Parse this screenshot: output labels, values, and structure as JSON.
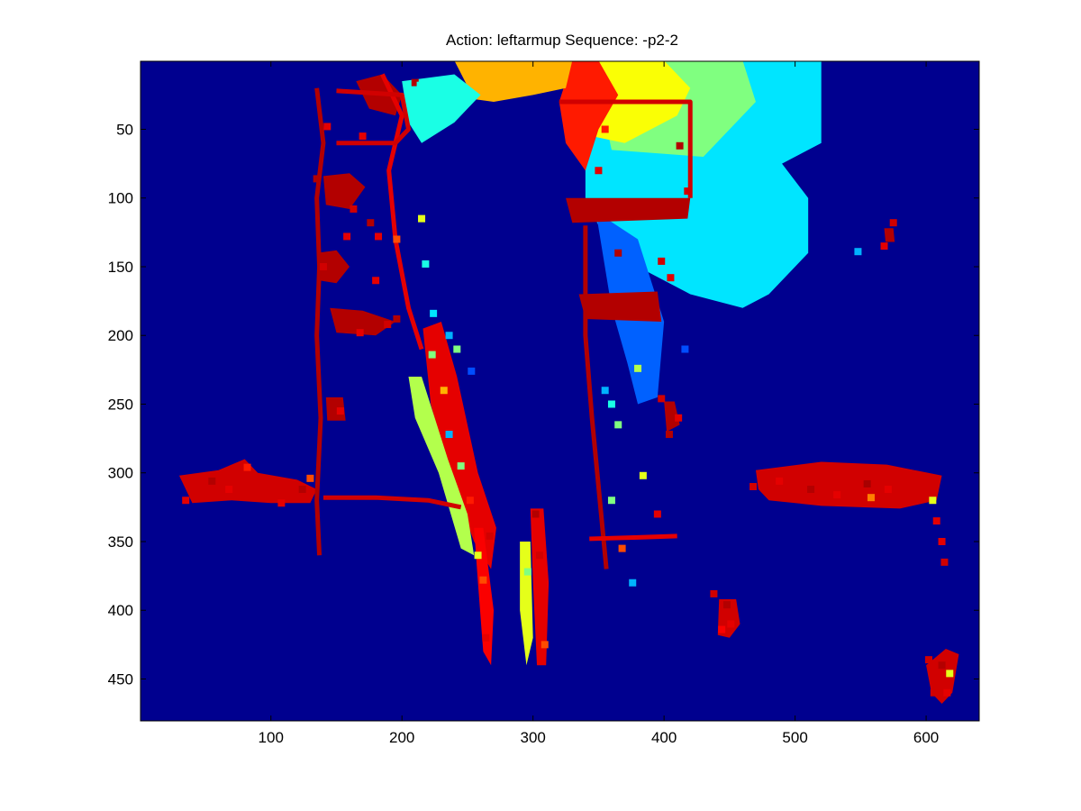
{
  "chart_data": {
    "type": "heatmap",
    "title": "Action: leftarmup Sequence: -p2-2",
    "xlabel": "",
    "ylabel": "",
    "xlim": [
      0.5,
      640.5
    ],
    "ylim": [
      0.5,
      480.5
    ],
    "y_reversed": true,
    "grid": false,
    "colormap": "jet",
    "background_value_color": "#00008f",
    "x_ticks": [
      100,
      200,
      300,
      400,
      500,
      600
    ],
    "y_ticks": [
      50,
      100,
      150,
      200,
      250,
      300,
      350,
      400,
      450
    ],
    "x_tick_labels": [
      "100",
      "200",
      "300",
      "400",
      "500",
      "600"
    ],
    "y_tick_labels": [
      "50",
      "100",
      "150",
      "200",
      "250",
      "300",
      "350",
      "400",
      "450"
    ],
    "regions": [
      {
        "kind": "polygon",
        "level": 0.35,
        "points": [
          [
            340,
            0
          ],
          [
            430,
            0
          ],
          [
            520,
            0
          ],
          [
            520,
            60
          ],
          [
            490,
            75
          ],
          [
            510,
            100
          ],
          [
            510,
            140
          ],
          [
            480,
            170
          ],
          [
            460,
            180
          ],
          [
            420,
            170
          ],
          [
            360,
            140
          ],
          [
            340,
            100
          ]
        ]
      },
      {
        "kind": "polygon",
        "level": 0.5,
        "points": [
          [
            345,
            0
          ],
          [
            410,
            0
          ],
          [
            460,
            0
          ],
          [
            470,
            30
          ],
          [
            440,
            60
          ],
          [
            430,
            70
          ],
          [
            360,
            65
          ]
        ]
      },
      {
        "kind": "polygon",
        "level": 0.62,
        "points": [
          [
            345,
            0
          ],
          [
            400,
            0
          ],
          [
            420,
            20
          ],
          [
            410,
            40
          ],
          [
            370,
            60
          ],
          [
            345,
            55
          ]
        ]
      },
      {
        "kind": "polygon",
        "level": 0.85,
        "points": [
          [
            330,
            0
          ],
          [
            350,
            0
          ],
          [
            365,
            25
          ],
          [
            350,
            50
          ],
          [
            340,
            80
          ],
          [
            325,
            60
          ],
          [
            320,
            30
          ]
        ]
      },
      {
        "kind": "polygon",
        "level": 0.22,
        "points": [
          [
            348,
            110
          ],
          [
            380,
            130
          ],
          [
            400,
            190
          ],
          [
            395,
            245
          ],
          [
            380,
            250
          ],
          [
            372,
            220
          ],
          [
            360,
            180
          ]
        ]
      },
      {
        "kind": "polygon",
        "level": 0.7,
        "points": [
          [
            240,
            0
          ],
          [
            300,
            0
          ],
          [
            330,
            0
          ],
          [
            325,
            20
          ],
          [
            300,
            25
          ],
          [
            270,
            30
          ],
          [
            255,
            28
          ]
        ]
      },
      {
        "kind": "polygon",
        "level": 0.4,
        "points": [
          [
            200,
            15
          ],
          [
            240,
            10
          ],
          [
            260,
            25
          ],
          [
            240,
            45
          ],
          [
            215,
            60
          ],
          [
            205,
            45
          ]
        ]
      },
      {
        "kind": "polygon",
        "level": 0.95,
        "points": [
          [
            165,
            15
          ],
          [
            185,
            10
          ],
          [
            200,
            25
          ],
          [
            195,
            40
          ],
          [
            175,
            35
          ]
        ]
      },
      {
        "kind": "polygon",
        "level": 0.9,
        "points": [
          [
            216,
            195
          ],
          [
            230,
            190
          ],
          [
            242,
            230
          ],
          [
            258,
            300
          ],
          [
            272,
            340
          ],
          [
            268,
            370
          ],
          [
            255,
            350
          ],
          [
            236,
            300
          ],
          [
            222,
            250
          ]
        ]
      },
      {
        "kind": "polygon",
        "level": 0.55,
        "points": [
          [
            205,
            230
          ],
          [
            215,
            230
          ],
          [
            235,
            290
          ],
          [
            250,
            330
          ],
          [
            255,
            360
          ],
          [
            245,
            355
          ],
          [
            228,
            300
          ],
          [
            210,
            260
          ]
        ]
      },
      {
        "kind": "polygon",
        "level": 0.88,
        "points": [
          [
            255,
            340
          ],
          [
            262,
            340
          ],
          [
            270,
            400
          ],
          [
            268,
            440
          ],
          [
            262,
            430
          ],
          [
            258,
            380
          ]
        ]
      },
      {
        "kind": "polygon",
        "level": 0.9,
        "points": [
          [
            298,
            326
          ],
          [
            308,
            326
          ],
          [
            312,
            380
          ],
          [
            310,
            440
          ],
          [
            303,
            440
          ],
          [
            300,
            380
          ]
        ]
      },
      {
        "kind": "polygon",
        "level": 0.6,
        "points": [
          [
            290,
            350
          ],
          [
            298,
            350
          ],
          [
            300,
            420
          ],
          [
            295,
            440
          ],
          [
            290,
            400
          ]
        ]
      },
      {
        "kind": "polygon",
        "level": 0.92,
        "points": [
          [
            470,
            298
          ],
          [
            520,
            292
          ],
          [
            570,
            294
          ],
          [
            612,
            302
          ],
          [
            608,
            320
          ],
          [
            580,
            326
          ],
          [
            520,
            324
          ],
          [
            480,
            320
          ],
          [
            472,
            312
          ]
        ]
      },
      {
        "kind": "polygon",
        "level": 0.92,
        "points": [
          [
            30,
            302
          ],
          [
            60,
            298
          ],
          [
            80,
            290
          ],
          [
            90,
            300
          ],
          [
            120,
            305
          ],
          [
            135,
            312
          ],
          [
            130,
            322
          ],
          [
            100,
            322
          ],
          [
            70,
            320
          ],
          [
            40,
            322
          ]
        ]
      },
      {
        "kind": "polygon",
        "level": 0.92,
        "points": [
          [
            442,
            392
          ],
          [
            455,
            392
          ],
          [
            458,
            410
          ],
          [
            450,
            420
          ],
          [
            441,
            418
          ]
        ]
      },
      {
        "kind": "polygon",
        "level": 0.92,
        "points": [
          [
            600,
            440
          ],
          [
            615,
            428
          ],
          [
            625,
            432
          ],
          [
            620,
            460
          ],
          [
            612,
            468
          ],
          [
            604,
            460
          ]
        ]
      },
      {
        "kind": "polygon",
        "level": 0.95,
        "points": [
          [
            135,
            140
          ],
          [
            150,
            138
          ],
          [
            160,
            150
          ],
          [
            150,
            162
          ],
          [
            137,
            160
          ]
        ]
      },
      {
        "kind": "polygon",
        "level": 0.95,
        "points": [
          [
            140,
            84
          ],
          [
            160,
            82
          ],
          [
            172,
            92
          ],
          [
            160,
            108
          ],
          [
            142,
            105
          ]
        ]
      },
      {
        "kind": "polygon",
        "level": 0.95,
        "points": [
          [
            145,
            180
          ],
          [
            170,
            182
          ],
          [
            195,
            190
          ],
          [
            180,
            200
          ],
          [
            150,
            198
          ]
        ]
      },
      {
        "kind": "polygon",
        "level": 0.95,
        "points": [
          [
            142,
            245
          ],
          [
            155,
            245
          ],
          [
            157,
            262
          ],
          [
            143,
            262
          ]
        ]
      },
      {
        "kind": "polygon",
        "level": 0.95,
        "points": [
          [
            325,
            100
          ],
          [
            420,
            100
          ],
          [
            418,
            115
          ],
          [
            330,
            118
          ]
        ]
      },
      {
        "kind": "polygon",
        "level": 0.95,
        "points": [
          [
            335,
            170
          ],
          [
            395,
            168
          ],
          [
            398,
            190
          ],
          [
            340,
            188
          ]
        ]
      },
      {
        "kind": "polygon",
        "level": 0.95,
        "points": [
          [
            400,
            248
          ],
          [
            408,
            248
          ],
          [
            412,
            265
          ],
          [
            402,
            270
          ]
        ]
      },
      {
        "kind": "polygon",
        "level": 0.95,
        "points": [
          [
            568,
            122
          ],
          [
            575,
            122
          ],
          [
            576,
            132
          ],
          [
            569,
            132
          ]
        ]
      }
    ],
    "edge_traces": [
      {
        "level": 0.95,
        "points": [
          [
            135,
            20
          ],
          [
            140,
            60
          ],
          [
            135,
            100
          ],
          [
            137,
            150
          ],
          [
            135,
            200
          ],
          [
            138,
            260
          ],
          [
            135,
            320
          ],
          [
            137,
            360
          ]
        ]
      },
      {
        "level": 0.9,
        "points": [
          [
            185,
            10
          ],
          [
            200,
            40
          ],
          [
            190,
            80
          ],
          [
            195,
            130
          ],
          [
            205,
            180
          ],
          [
            215,
            210
          ]
        ]
      },
      {
        "level": 0.92,
        "points": [
          [
            150,
            22
          ],
          [
            200,
            25
          ],
          [
            205,
            50
          ],
          [
            195,
            60
          ],
          [
            150,
            60
          ]
        ]
      },
      {
        "level": 0.92,
        "points": [
          [
            320,
            30
          ],
          [
            420,
            30
          ],
          [
            420,
            100
          ]
        ]
      },
      {
        "level": 0.95,
        "points": [
          [
            340,
            120
          ],
          [
            340,
            200
          ],
          [
            345,
            260
          ],
          [
            352,
            330
          ],
          [
            356,
            370
          ]
        ]
      },
      {
        "level": 0.92,
        "points": [
          [
            140,
            318
          ],
          [
            180,
            318
          ],
          [
            220,
            320
          ],
          [
            245,
            325
          ]
        ]
      },
      {
        "level": 0.9,
        "points": [
          [
            343,
            348
          ],
          [
            380,
            347
          ],
          [
            410,
            346
          ]
        ]
      }
    ],
    "speckles": [
      [
        210,
        16,
        0.95
      ],
      [
        214,
        18,
        0.4
      ],
      [
        170,
        55,
        0.9
      ],
      [
        163,
        108,
        0.92
      ],
      [
        180,
        160,
        0.9
      ],
      [
        140,
        150,
        0.92
      ],
      [
        146,
        250,
        0.95
      ],
      [
        153,
        255,
        0.9
      ],
      [
        215,
        115,
        0.6
      ],
      [
        218,
        148,
        0.4
      ],
      [
        223,
        214,
        0.5
      ],
      [
        232,
        240,
        0.7
      ],
      [
        236,
        272,
        0.3
      ],
      [
        245,
        295,
        0.5
      ],
      [
        252,
        320,
        0.85
      ],
      [
        267,
        346,
        0.92
      ],
      [
        258,
        360,
        0.6
      ],
      [
        262,
        378,
        0.8
      ],
      [
        264,
        420,
        0.9
      ],
      [
        302,
        330,
        0.95
      ],
      [
        305,
        360,
        0.92
      ],
      [
        307,
        395,
        0.9
      ],
      [
        309,
        425,
        0.8
      ],
      [
        296,
        372,
        0.5
      ],
      [
        355,
        240,
        0.3
      ],
      [
        360,
        250,
        0.4
      ],
      [
        365,
        265,
        0.5
      ],
      [
        398,
        246,
        0.92
      ],
      [
        404,
        256,
        0.95
      ],
      [
        411,
        260,
        0.9
      ],
      [
        404,
        272,
        0.95
      ],
      [
        468,
        310,
        0.92
      ],
      [
        488,
        306,
        0.9
      ],
      [
        512,
        312,
        0.95
      ],
      [
        532,
        316,
        0.9
      ],
      [
        555,
        308,
        0.96
      ],
      [
        558,
        318,
        0.75
      ],
      [
        571,
        312,
        0.9
      ],
      [
        590,
        314,
        0.92
      ],
      [
        605,
        320,
        0.6
      ],
      [
        608,
        335,
        0.9
      ],
      [
        612,
        350,
        0.9
      ],
      [
        614,
        365,
        0.92
      ],
      [
        35,
        320,
        0.9
      ],
      [
        55,
        306,
        0.95
      ],
      [
        68,
        312,
        0.9
      ],
      [
        82,
        296,
        0.85
      ],
      [
        96,
        318,
        0.92
      ],
      [
        108,
        322,
        0.9
      ],
      [
        124,
        312,
        0.95
      ],
      [
        130,
        304,
        0.8
      ],
      [
        438,
        388,
        0.92
      ],
      [
        448,
        396,
        0.95
      ],
      [
        451,
        410,
        0.9
      ],
      [
        444,
        414,
        0.88
      ],
      [
        602,
        436,
        0.92
      ],
      [
        612,
        440,
        0.95
      ],
      [
        618,
        446,
        0.6
      ],
      [
        616,
        460,
        0.9
      ],
      [
        606,
        460,
        0.92
      ],
      [
        575,
        118,
        0.92
      ],
      [
        568,
        135,
        0.9
      ],
      [
        548,
        139,
        0.3
      ],
      [
        365,
        140,
        0.95
      ],
      [
        398,
        146,
        0.92
      ],
      [
        405,
        158,
        0.9
      ],
      [
        393,
        112,
        0.95
      ],
      [
        412,
        62,
        0.95
      ],
      [
        418,
        95,
        0.92
      ],
      [
        350,
        80,
        0.9
      ],
      [
        355,
        50,
        0.85
      ],
      [
        196,
        188,
        0.95
      ],
      [
        189,
        192,
        0.92
      ],
      [
        168,
        198,
        0.9
      ],
      [
        176,
        118,
        0.95
      ],
      [
        182,
        128,
        0.9
      ],
      [
        196,
        130,
        0.8
      ],
      [
        158,
        128,
        0.9
      ],
      [
        143,
        48,
        0.9
      ],
      [
        135,
        86,
        0.95
      ],
      [
        224,
        184,
        0.35
      ],
      [
        236,
        200,
        0.3
      ],
      [
        242,
        210,
        0.5
      ],
      [
        253,
        226,
        0.2
      ],
      [
        380,
        224,
        0.55
      ],
      [
        384,
        302,
        0.6
      ],
      [
        395,
        330,
        0.9
      ],
      [
        416,
        210,
        0.2
      ],
      [
        360,
        320,
        0.5
      ],
      [
        368,
        355,
        0.8
      ],
      [
        376,
        380,
        0.3
      ]
    ]
  }
}
